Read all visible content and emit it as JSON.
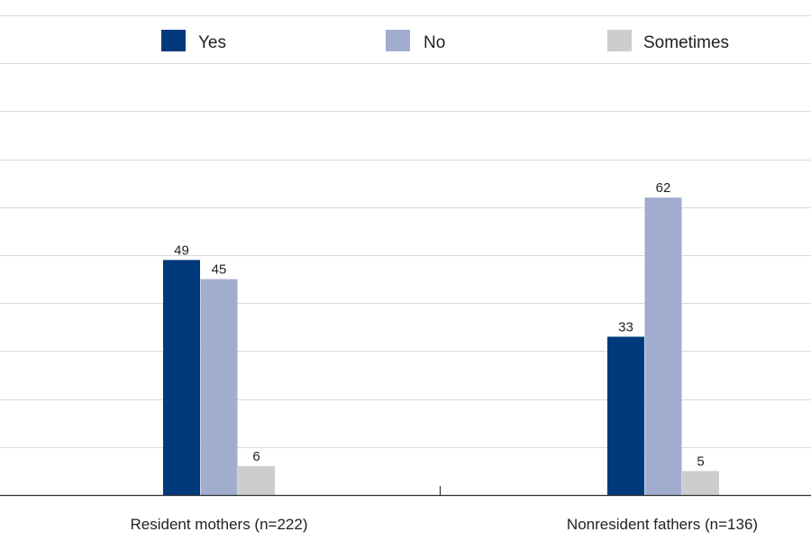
{
  "chart_data": {
    "type": "bar",
    "categories": [
      "Resident mothers (n=222)",
      "Nonresident fathers (n=136)"
    ],
    "series": [
      {
        "name": "Yes",
        "values": [
          49,
          33
        ],
        "color": "#003a7d"
      },
      {
        "name": "No",
        "values": [
          45,
          62
        ],
        "color": "#a0adcf"
      },
      {
        "name": "Sometimes",
        "values": [
          6,
          5
        ],
        "color": "#cdcdcd"
      }
    ],
    "ylim": [
      0,
      100
    ],
    "grid": true,
    "legend": "top",
    "data_labels": true
  }
}
